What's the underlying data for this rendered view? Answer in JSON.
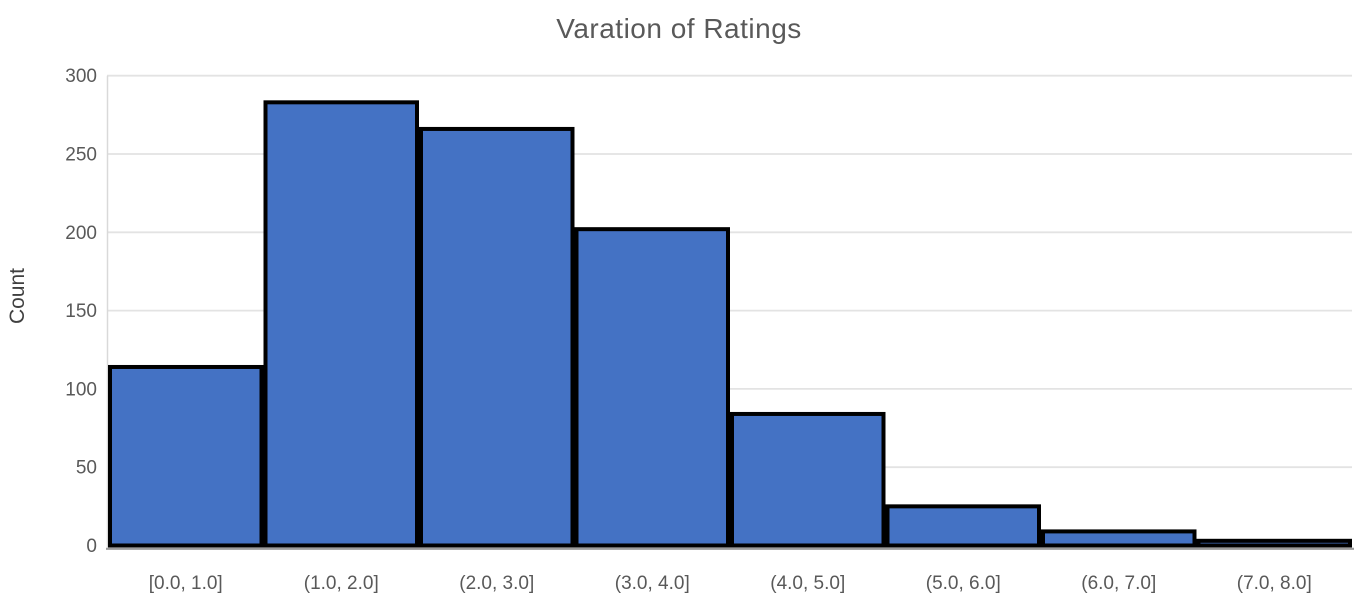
{
  "chart_data": {
    "type": "bar",
    "subtype": "histogram",
    "title": "Varation of Ratings",
    "xlabel": "",
    "ylabel": "Count",
    "categories": [
      "[0.0, 1.0]",
      "(1.0, 2.0]",
      "(2.0, 3.0]",
      "(3.0, 4.0]",
      "(4.0, 5.0]",
      "(5.0, 6.0]",
      "(6.0, 7.0]",
      "(7.0, 8.0]"
    ],
    "values": [
      114,
      283,
      266,
      202,
      84,
      25,
      9,
      3
    ],
    "y_ticks": [
      0,
      50,
      100,
      150,
      200,
      250,
      300
    ],
    "ylim": [
      0,
      300
    ],
    "grid": "horizontal-only",
    "legend": "none",
    "colors": {
      "bar_fill": "#4472C4",
      "bar_border": "#000000",
      "gridline": "#E3E3E3",
      "y_axis_line": "#D9D9D9",
      "x_axis_line": "#9B9B9B",
      "title_text": "#595959",
      "tick_text": "#595959",
      "axis_label_text": "#404040",
      "background": "#FFFFFF"
    }
  }
}
